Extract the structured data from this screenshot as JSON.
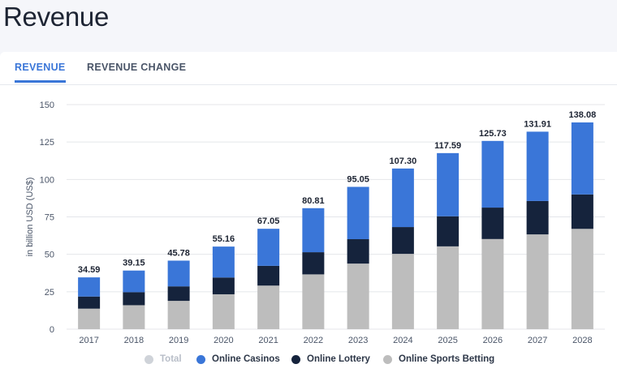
{
  "page": {
    "title": "Revenue"
  },
  "tabs": [
    {
      "label": "REVENUE",
      "active": true
    },
    {
      "label": "REVENUE CHANGE",
      "active": false
    }
  ],
  "colors": {
    "online_casinos": "#3a76d8",
    "online_lottery": "#15233c",
    "online_sports_betting": "#bdbdbd",
    "total_legend_muted": "#cfd3d9",
    "grid": "#e4e6ea"
  },
  "chart_data": {
    "type": "bar",
    "stacked": true,
    "categories": [
      "2017",
      "2018",
      "2019",
      "2020",
      "2021",
      "2022",
      "2023",
      "2024",
      "2025",
      "2026",
      "2027",
      "2028"
    ],
    "series": [
      {
        "name": "Online Sports Betting",
        "values": [
          13.7,
          16.0,
          18.9,
          23.3,
          29.1,
          36.6,
          43.8,
          50.3,
          55.3,
          60.2,
          63.3,
          67.0
        ]
      },
      {
        "name": "Online Lottery",
        "values": [
          8.1,
          8.7,
          9.7,
          11.2,
          13.2,
          14.8,
          16.3,
          17.9,
          20.1,
          21.0,
          22.3,
          23.0
        ]
      },
      {
        "name": "Online Casinos",
        "values": [
          12.79,
          14.45,
          17.18,
          20.66,
          24.75,
          29.41,
          34.95,
          39.1,
          42.19,
          44.53,
          46.31,
          48.08
        ]
      }
    ],
    "totals": [
      34.59,
      39.15,
      45.78,
      55.16,
      67.05,
      80.81,
      95.05,
      107.3,
      117.59,
      125.73,
      131.91,
      138.08
    ],
    "total_labels": [
      "34.59",
      "39.15",
      "45.78",
      "55.16",
      "67.05",
      "80.81",
      "95.05",
      "107.30",
      "117.59",
      "125.73",
      "131.91",
      "138.08"
    ],
    "ylabel": "in billion USD (US$)",
    "ylim": [
      0,
      150
    ],
    "yticks": [
      "0",
      "25",
      "50",
      "75",
      "100",
      "125",
      "150"
    ],
    "grid": true,
    "legend": [
      {
        "label": "Total",
        "muted": true
      },
      {
        "label": "Online Casinos",
        "muted": false
      },
      {
        "label": "Online Lottery",
        "muted": false
      },
      {
        "label": "Online Sports Betting",
        "muted": false
      }
    ]
  }
}
